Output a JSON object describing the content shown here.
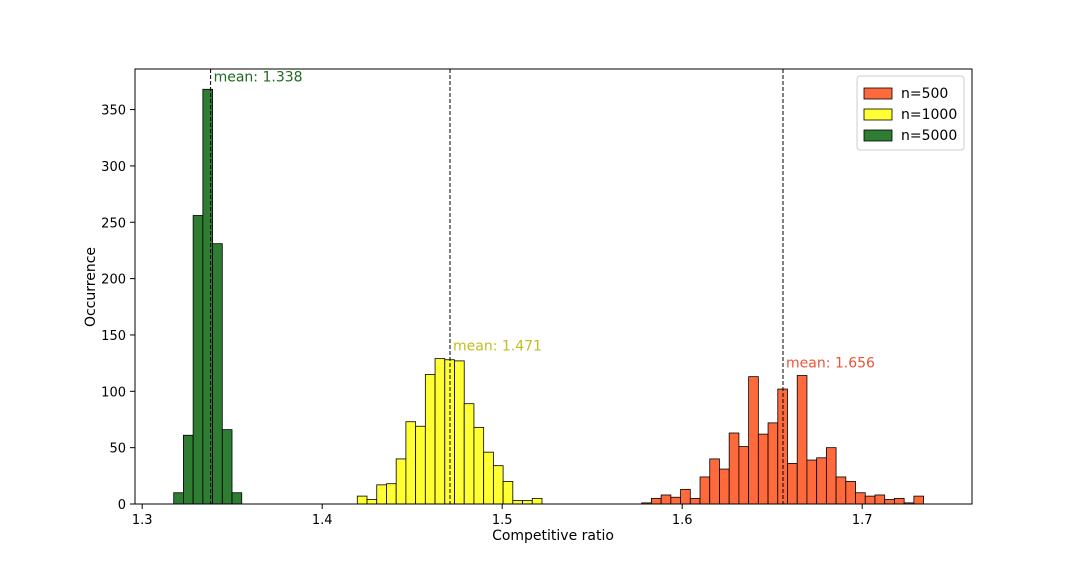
{
  "chart_data": {
    "type": "bar",
    "title": "",
    "xlabel": "Competitive ratio",
    "ylabel": "Occurrence",
    "xlim": [
      1.296,
      1.761
    ],
    "ylim": [
      0,
      386
    ],
    "xticks": [
      1.3,
      1.4,
      1.5,
      1.6,
      1.7
    ],
    "xtick_labels": [
      "1.3",
      "1.4",
      "1.5",
      "1.6",
      "1.7"
    ],
    "yticks": [
      0,
      50,
      100,
      150,
      200,
      250,
      300,
      350
    ],
    "ytick_labels": [
      "0",
      "50",
      "100",
      "150",
      "200",
      "250",
      "300",
      "350"
    ],
    "grid": false,
    "legend_position": "top-right",
    "series": [
      {
        "name": "n=500",
        "color": "#FF6A3D",
        "mean": 1.656,
        "mean_label": "mean: 1.656",
        "mean_label_color": "#E8553A",
        "bin_start": 1.5775,
        "bin_width": 0.0054,
        "values": [
          1,
          5,
          8,
          6,
          13,
          5,
          24,
          40,
          31,
          63,
          51,
          113,
          62,
          72,
          102,
          36,
          114,
          39,
          41,
          50,
          24,
          20,
          10,
          7,
          8,
          4,
          5,
          1,
          7
        ]
      },
      {
        "name": "n=1000",
        "color": "#FFFF33",
        "mean": 1.471,
        "mean_label": "mean: 1.471",
        "mean_label_color": "#BFBF20",
        "bin_start": 1.4195,
        "bin_width": 0.0054,
        "values": [
          7,
          4,
          17,
          18,
          40,
          73,
          69,
          115,
          129,
          128,
          127,
          89,
          68,
          46,
          34,
          20,
          3,
          3,
          5
        ]
      },
      {
        "name": "n=5000",
        "color": "#2E7D32",
        "mean": 1.338,
        "mean_label": "mean: 1.338",
        "mean_label_color": "#1E6B1E",
        "bin_start": 1.3175,
        "bin_width": 0.0054,
        "values": [
          10,
          61,
          256,
          368,
          231,
          66,
          10
        ]
      }
    ]
  }
}
